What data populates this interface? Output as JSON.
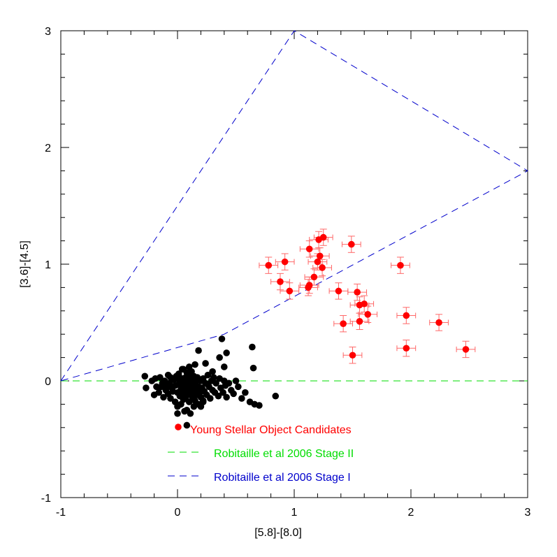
{
  "chart_data": {
    "type": "scatter",
    "title": "",
    "xlabel": "[5.8]-[8.0]",
    "ylabel": "[3.6]-[4.5]",
    "xlim": [
      -1,
      3
    ],
    "ylim": [
      -1,
      3
    ],
    "xticks": [
      "-1",
      "0",
      "1",
      "2",
      "3"
    ],
    "yticks": [
      "-1",
      "0",
      "1",
      "2",
      "3"
    ],
    "grid": false,
    "legend_position": "bottom-center",
    "colors": {
      "yso": "#ff0000",
      "field": "#000000",
      "stage2": "#00dd00",
      "stage1": "#0000cc",
      "errorbar": "#ff6666"
    },
    "legend": [
      {
        "label": "Young Stellar Object Candidates",
        "color": "#ff0000",
        "marker": "dot"
      },
      {
        "label": "Robitaille et al 2006 Stage II",
        "color": "#00dd00",
        "marker": "dash"
      },
      {
        "label": "Robitaille et al 2006 Stage I",
        "color": "#0000cc",
        "marker": "dash"
      }
    ],
    "stage2_line": {
      "x": [
        -1,
        3
      ],
      "y": [
        0,
        0
      ]
    },
    "stage1_region": {
      "x": [
        -1,
        1,
        3,
        3,
        0.4,
        -1
      ],
      "y": [
        0,
        3,
        1.8,
        1.8,
        0.4,
        0
      ]
    },
    "yso": {
      "x": [
        1.25,
        1.21,
        1.49,
        1.13,
        1.22,
        0.78,
        0.92,
        1.2,
        1.24,
        1.91,
        0.88,
        0.96,
        1.17,
        1.13,
        1.12,
        1.38,
        1.54,
        1.56,
        1.6,
        1.63,
        1.56,
        1.42,
        1.96,
        2.24,
        1.96,
        2.47,
        1.5
      ],
      "y": [
        1.23,
        1.21,
        1.17,
        1.13,
        1.07,
        0.99,
        1.02,
        1.02,
        0.97,
        0.99,
        0.85,
        0.77,
        0.89,
        0.82,
        0.8,
        0.77,
        0.76,
        0.65,
        0.66,
        0.57,
        0.51,
        0.49,
        0.56,
        0.5,
        0.28,
        0.27,
        0.22
      ],
      "xerr": 0.08,
      "yerr": 0.07
    },
    "field": {
      "x": [
        -0.28,
        -0.27,
        -0.22,
        -0.2,
        -0.19,
        -0.18,
        -0.16,
        -0.15,
        -0.13,
        -0.12,
        -0.11,
        -0.1,
        -0.09,
        -0.08,
        -0.08,
        -0.07,
        -0.06,
        -0.05,
        -0.05,
        -0.04,
        -0.03,
        -0.02,
        -0.02,
        -0.01,
        0.0,
        0.0,
        0.01,
        0.01,
        0.02,
        0.02,
        0.03,
        0.03,
        0.04,
        0.04,
        0.05,
        0.05,
        0.05,
        0.06,
        0.06,
        0.07,
        0.07,
        0.08,
        0.08,
        0.08,
        0.09,
        0.09,
        0.1,
        0.1,
        0.1,
        0.11,
        0.11,
        0.12,
        0.12,
        0.12,
        0.13,
        0.13,
        0.14,
        0.14,
        0.15,
        0.15,
        0.15,
        0.16,
        0.16,
        0.17,
        0.17,
        0.18,
        0.18,
        0.19,
        0.2,
        0.2,
        0.21,
        0.22,
        0.22,
        0.23,
        0.24,
        0.25,
        0.26,
        0.27,
        0.28,
        0.29,
        0.3,
        0.31,
        0.32,
        0.33,
        0.35,
        0.36,
        0.37,
        0.39,
        0.4,
        0.41,
        0.42,
        0.44,
        0.46,
        0.48,
        0.5,
        0.52,
        0.55,
        0.58,
        0.62,
        0.66,
        0.7,
        0.84,
        0.15,
        0.18,
        0.24,
        0.38,
        0.42,
        0.36,
        0.4,
        0.64,
        0.65,
        0.1,
        0.12,
        0.02,
        -0.06,
        0.06,
        0.08,
        0.14,
        0.2,
        0.26,
        0.3,
        0.04,
        0.0,
        -0.14,
        0.16,
        0.22
      ],
      "y": [
        0.04,
        -0.06,
        0.0,
        -0.12,
        0.02,
        -0.05,
        -0.1,
        0.03,
        -0.02,
        -0.14,
        0.0,
        -0.08,
        -0.04,
        0.05,
        -0.11,
        -0.02,
        -0.15,
        0.02,
        -0.06,
        -0.09,
        0.01,
        -0.18,
        -0.04,
        0.04,
        -0.1,
        -0.22,
        0.06,
        -0.03,
        -0.13,
        0.0,
        -0.07,
        -0.2,
        0.02,
        -0.12,
        -0.05,
        -0.16,
        0.1,
        -0.02,
        -0.09,
        0.03,
        -0.14,
        -0.06,
        -0.25,
        0.07,
        -0.1,
        -0.01,
        -0.04,
        -0.18,
        0.05,
        -0.12,
        -0.28,
        -0.02,
        -0.08,
        0.02,
        -0.15,
        -0.05,
        -0.22,
        0.04,
        -0.1,
        -0.03,
        -0.17,
        0.0,
        -0.07,
        -0.12,
        0.03,
        -0.2,
        -0.05,
        -0.1,
        0.0,
        -0.14,
        -0.06,
        0.02,
        -0.18,
        -0.09,
        -0.02,
        -0.12,
        0.05,
        -0.05,
        -0.15,
        0.0,
        -0.08,
        0.03,
        -0.1,
        -0.02,
        -0.13,
        0.02,
        -0.06,
        -0.1,
        0.0,
        -0.04,
        -0.14,
        -0.02,
        -0.08,
        -0.11,
        0.0,
        -0.05,
        -0.15,
        -0.1,
        -0.18,
        -0.2,
        -0.21,
        -0.13,
        0.14,
        0.26,
        0.15,
        0.36,
        0.24,
        0.2,
        0.12,
        0.29,
        0.11,
        0.12,
        0.08,
        -0.12,
        0.03,
        -0.26,
        -0.38,
        -0.08,
        -0.22,
        -0.03,
        0.08,
        0.1,
        -0.28,
        -0.05,
        -0.1,
        -0.17
      ]
    }
  }
}
